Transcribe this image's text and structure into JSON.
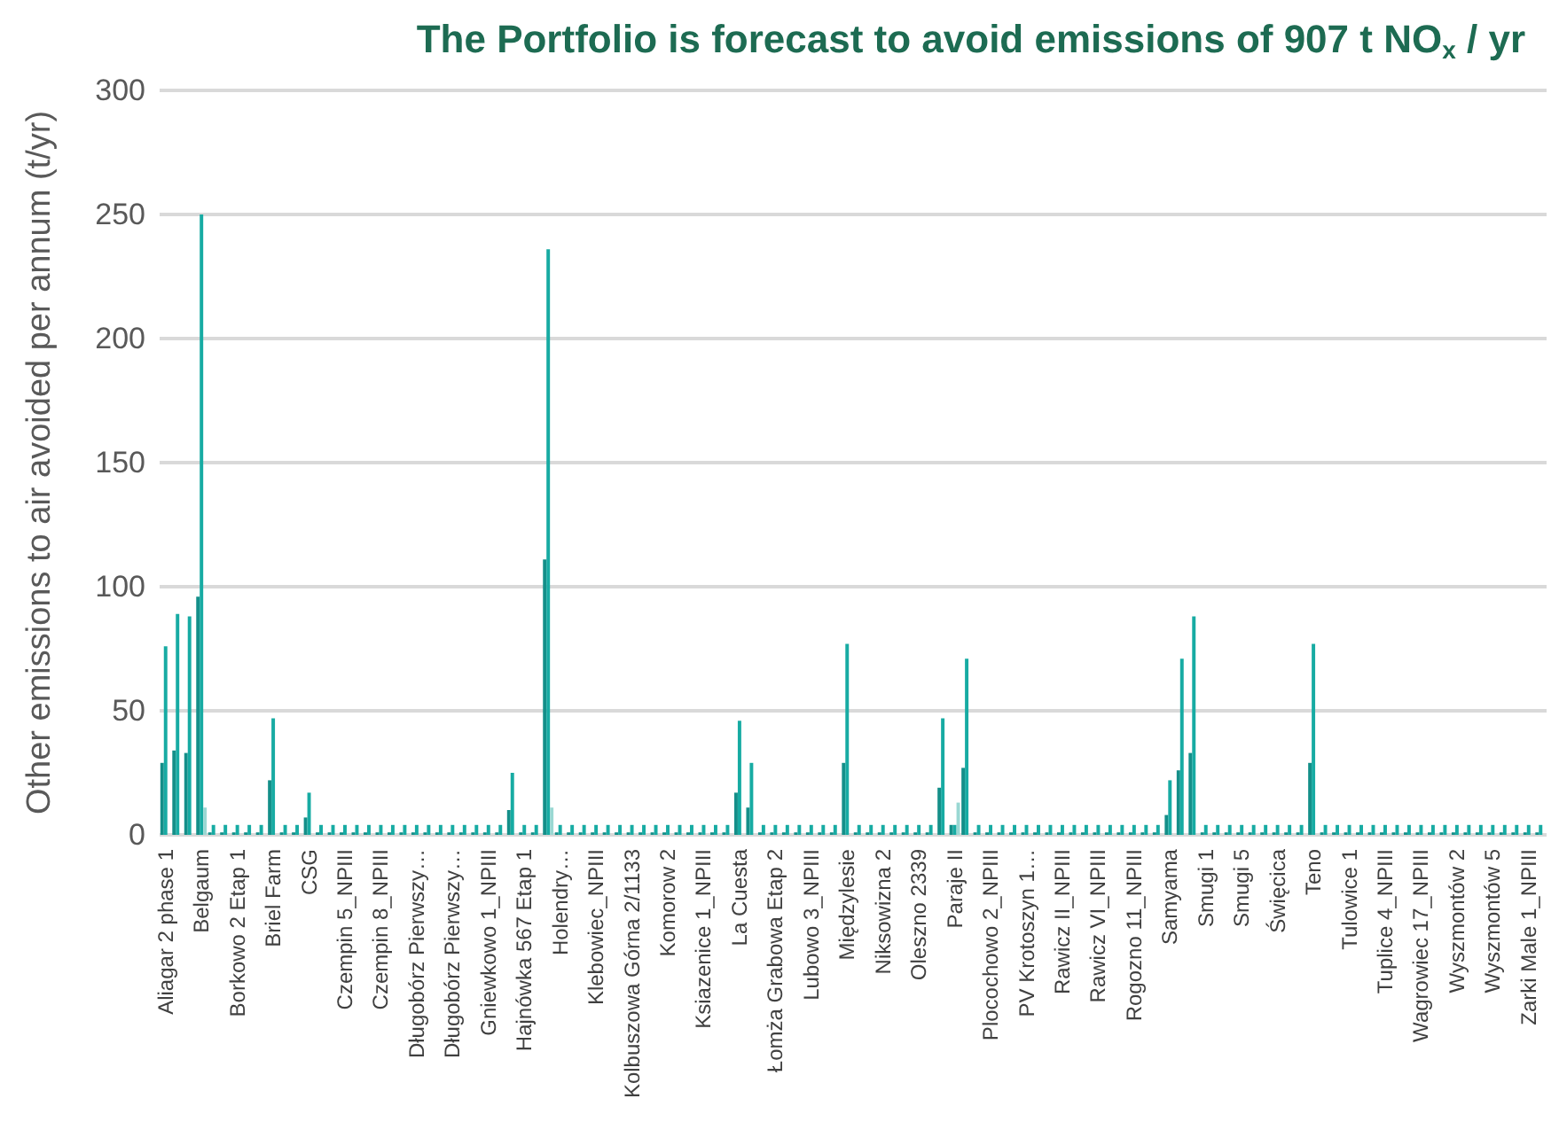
{
  "chart_data": {
    "type": "bar",
    "title": "The Portfolio is forecast to avoid emissions of 907 t NO$_{x}$ / yr",
    "ylabel": "Other emissions to air avoided per annum (t/yr)",
    "categories": [
      "Aliagar 2 phase 1",
      null,
      null,
      "Belgaum",
      null,
      null,
      "Borkowo 2 Etap 1",
      null,
      null,
      "Briel Farm",
      null,
      null,
      "CSG",
      null,
      null,
      "Czempin 5_NPIII",
      null,
      null,
      "Czempin 8_NPIII",
      null,
      null,
      "Długobórz Pierwszy…",
      null,
      null,
      "Długobórz Pierwszy…",
      null,
      null,
      "Gniewkowo 1_NPIII",
      null,
      null,
      "Hajnówka 567 Etap 1",
      null,
      null,
      "Holendry…",
      null,
      null,
      "Klebowiec_NPIII",
      null,
      null,
      "Kolbuszowa Górna 2/1133",
      null,
      null,
      "Komorow 2",
      null,
      null,
      "Ksiazenice 1_NPIII",
      null,
      null,
      "La Cuesta",
      null,
      null,
      "Łomża Grabowa Etap 2",
      null,
      null,
      "Lubowo 3_NPIII",
      null,
      null,
      "Międzylesie",
      null,
      null,
      "Niksowizna 2",
      null,
      null,
      "Oleszno 2339",
      null,
      null,
      "Paraje II",
      null,
      null,
      "Plocochowo 2_NPIII",
      null,
      null,
      "PV Krotoszyn 1…",
      null,
      null,
      "Rawicz II_NPIII",
      null,
      null,
      "Rawicz VI_NPIII",
      null,
      null,
      "Rogozno 11_NPIII",
      null,
      null,
      "Samyama",
      null,
      null,
      "Smugi 1",
      null,
      null,
      "Smugi 5",
      null,
      null,
      "Święcica",
      null,
      null,
      "Teno",
      null,
      null,
      "Tulowice 1",
      null,
      null,
      "Tuplice 4_NPIII",
      null,
      null,
      "Wagrowiec 17_NPIII",
      null,
      null,
      "Wyszmontów 2",
      null,
      null,
      "Wyszmontów 5",
      null,
      null,
      "Zarki Male 1_NPIII",
      null
    ],
    "series": [
      {
        "color": "#148f89",
        "values": [
          29,
          34,
          33,
          96,
          1,
          1,
          1,
          1,
          1,
          22,
          1,
          1,
          7,
          1,
          1,
          1,
          1,
          1,
          1,
          1,
          1,
          1,
          1,
          1,
          1,
          1,
          1,
          1,
          1,
          10,
          1,
          1,
          111,
          1,
          1,
          1,
          1,
          1,
          1,
          1,
          1,
          1,
          1,
          1,
          1,
          1,
          1,
          1,
          17,
          11,
          1,
          1,
          1,
          1,
          1,
          1,
          1,
          29,
          1,
          1,
          1,
          1,
          1,
          1,
          1,
          19,
          4,
          27,
          1,
          1,
          1,
          1,
          1,
          1,
          1,
          1,
          1,
          1,
          1,
          1,
          1,
          1,
          1,
          1,
          8,
          26,
          33,
          1,
          1,
          1,
          1,
          1,
          1,
          1,
          1,
          1,
          29,
          1,
          1,
          1,
          1,
          1,
          1,
          1,
          1,
          1,
          1,
          1,
          1,
          1,
          1,
          1,
          1,
          1,
          1,
          1
        ]
      },
      {
        "color": "#17aba3",
        "values": [
          76,
          89,
          88,
          250,
          4,
          4,
          4,
          4,
          4,
          47,
          4,
          4,
          17,
          4,
          4,
          4,
          4,
          4,
          4,
          4,
          4,
          4,
          4,
          4,
          4,
          4,
          4,
          4,
          4,
          25,
          4,
          4,
          236,
          4,
          4,
          4,
          4,
          4,
          4,
          4,
          4,
          4,
          4,
          4,
          4,
          4,
          4,
          4,
          46,
          29,
          4,
          4,
          4,
          4,
          4,
          4,
          4,
          77,
          4,
          4,
          4,
          4,
          4,
          4,
          4,
          47,
          4,
          71,
          4,
          4,
          4,
          4,
          4,
          4,
          4,
          4,
          4,
          4,
          4,
          4,
          4,
          4,
          4,
          4,
          22,
          71,
          88,
          4,
          4,
          4,
          4,
          4,
          4,
          4,
          4,
          4,
          77,
          4,
          4,
          4,
          4,
          4,
          4,
          4,
          4,
          4,
          4,
          4,
          4,
          4,
          4,
          4,
          4,
          4,
          4,
          4
        ]
      },
      {
        "color": "#9ad8d3",
        "values": [
          null,
          null,
          null,
          11,
          null,
          null,
          null,
          null,
          null,
          null,
          null,
          null,
          null,
          null,
          null,
          null,
          null,
          null,
          null,
          null,
          null,
          null,
          null,
          null,
          null,
          null,
          null,
          null,
          null,
          null,
          null,
          null,
          11,
          null,
          null,
          null,
          null,
          null,
          null,
          null,
          null,
          null,
          null,
          null,
          null,
          null,
          null,
          null,
          null,
          null,
          null,
          null,
          null,
          null,
          null,
          null,
          null,
          null,
          null,
          null,
          null,
          null,
          null,
          null,
          null,
          null,
          13,
          null,
          null,
          null,
          null,
          null,
          null,
          null,
          null,
          null,
          null,
          null,
          null,
          null,
          null,
          null,
          null,
          null,
          null,
          null,
          null,
          null,
          null,
          null,
          null,
          null,
          null,
          null,
          null,
          null,
          null,
          null,
          null,
          null,
          null,
          null,
          null,
          null,
          null,
          null,
          null,
          null,
          null,
          null,
          null,
          null,
          null,
          null,
          null,
          null
        ]
      }
    ],
    "ylim": [
      0,
      300
    ],
    "yticks": [
      0,
      50,
      100,
      150,
      200,
      250,
      300
    ],
    "grid": "y"
  }
}
